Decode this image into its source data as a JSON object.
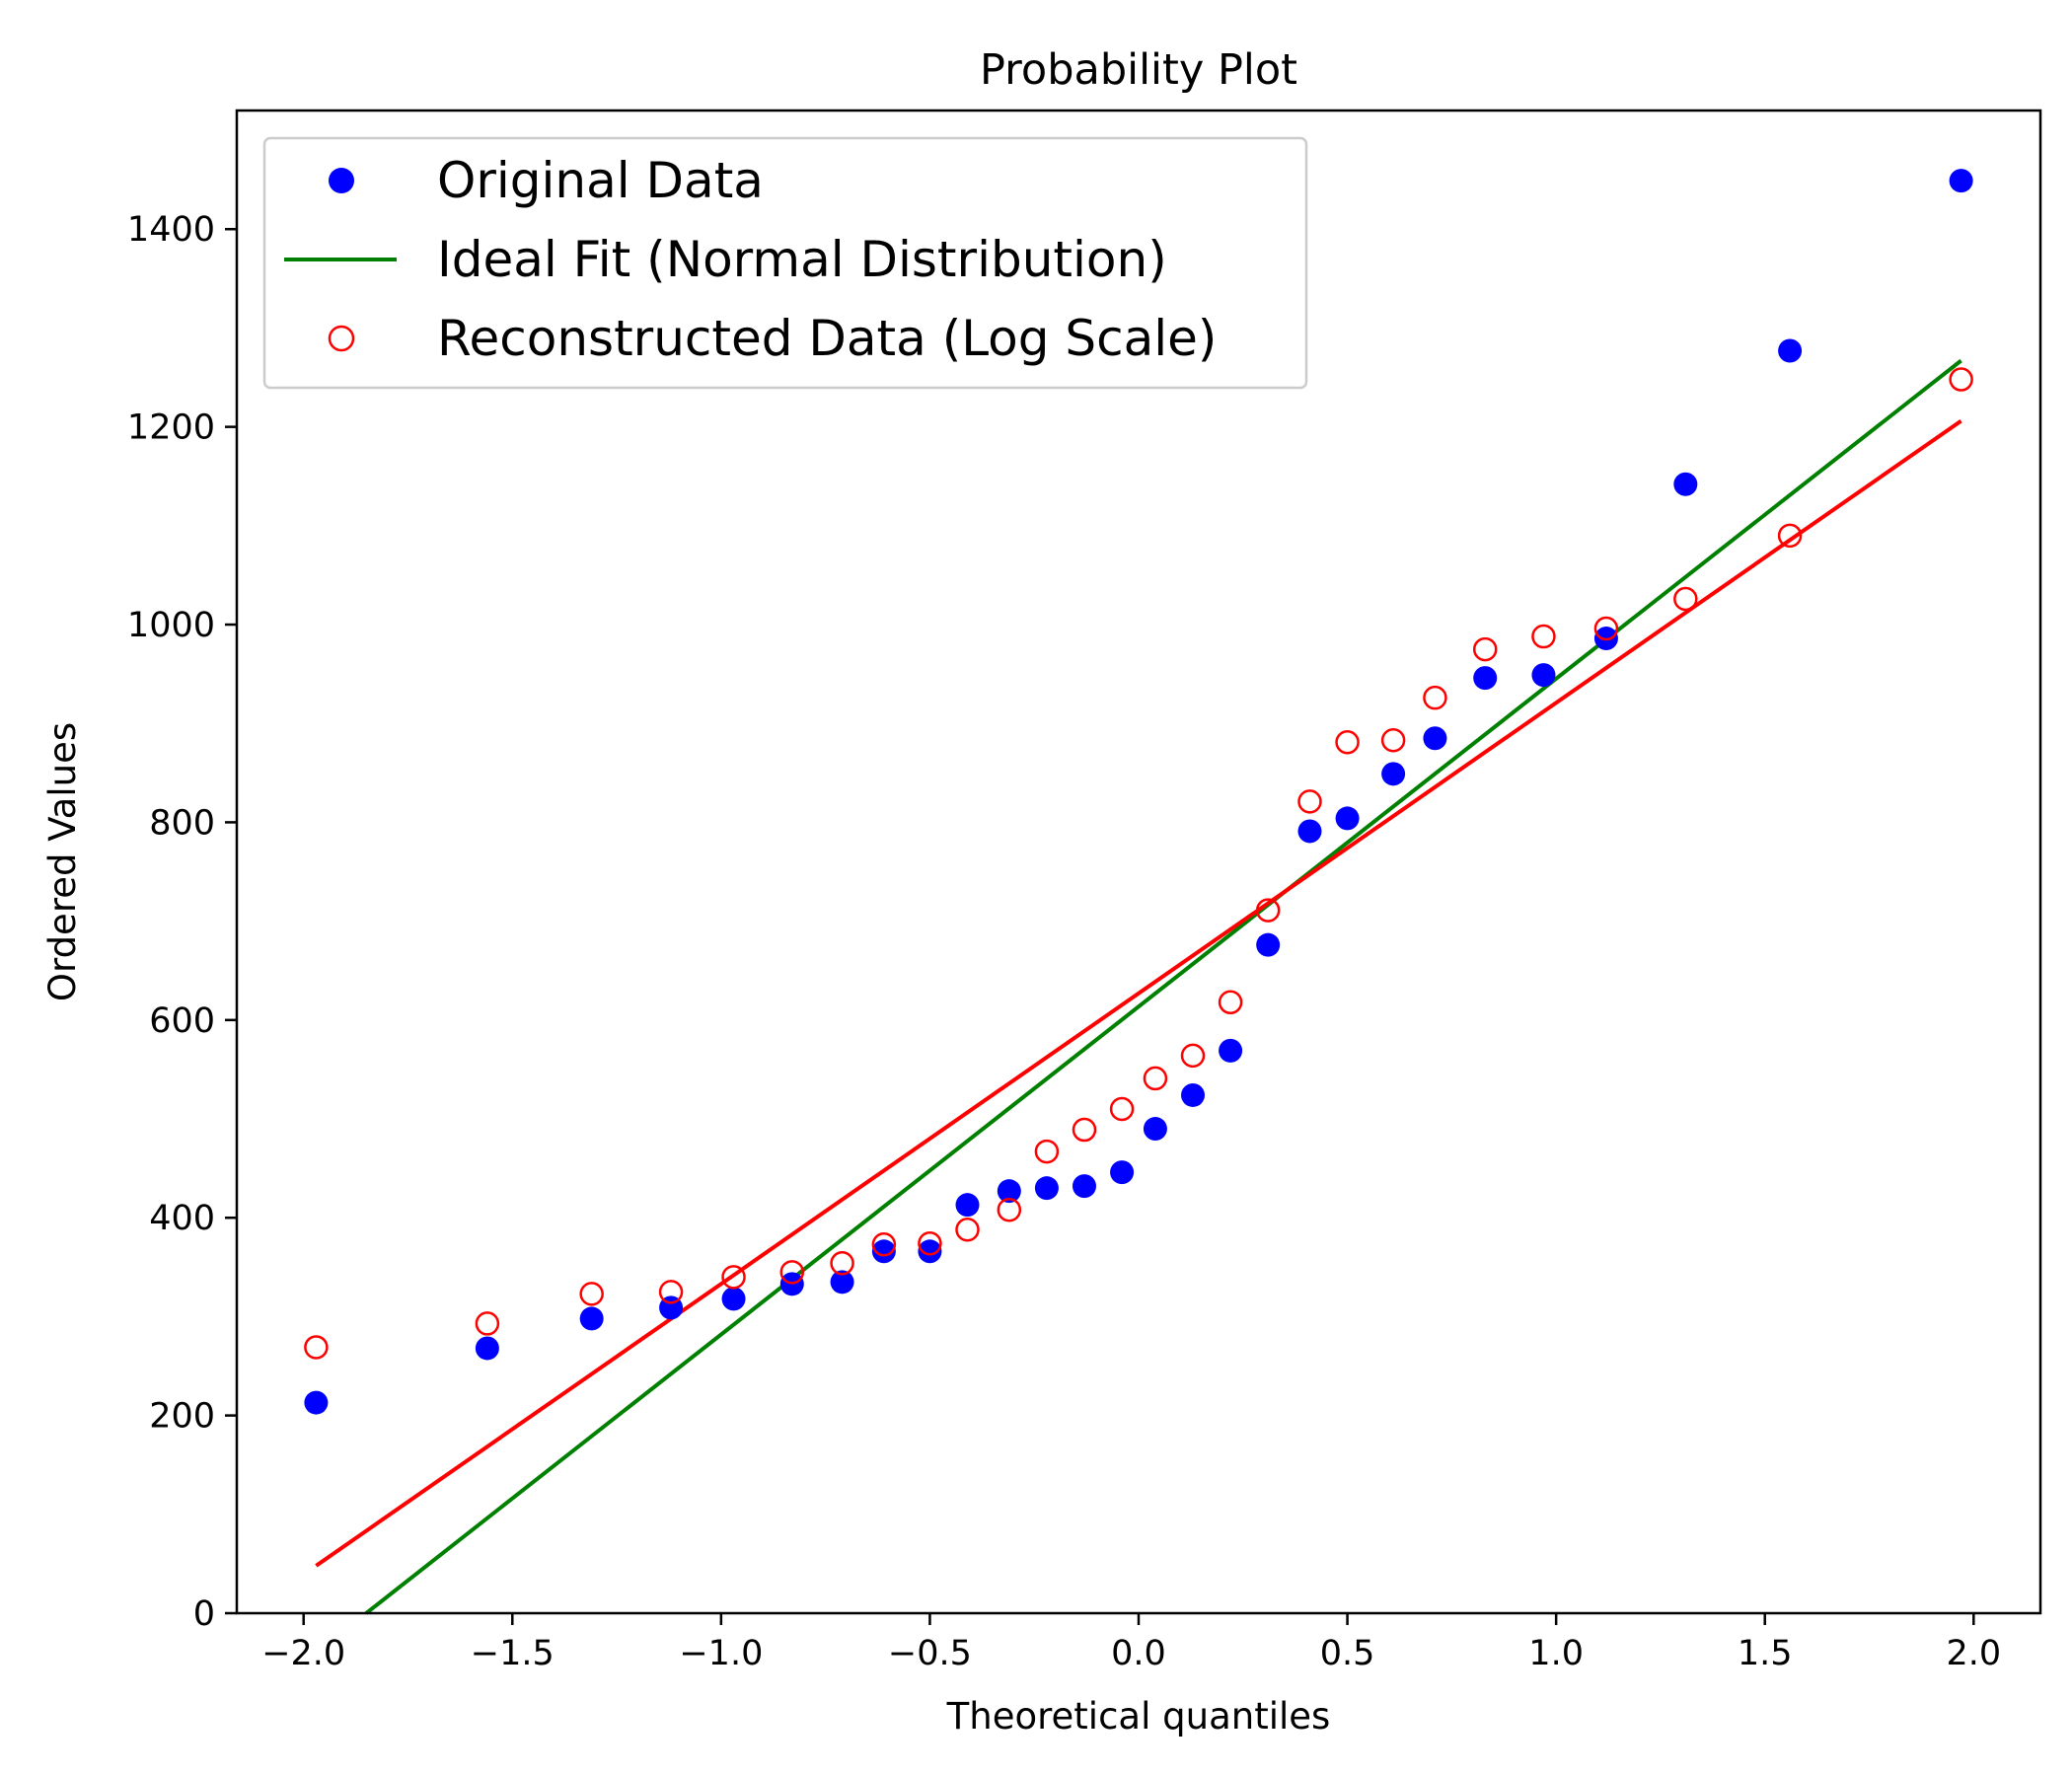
{
  "chart_data": {
    "type": "scatter",
    "title": "Probability Plot",
    "xlabel": "Theoretical quantiles",
    "ylabel": "Ordered Values",
    "xlim": [
      -2.16,
      2.16
    ],
    "ylim": [
      0,
      1520
    ],
    "xticks": [
      -2.0,
      -1.5,
      -1.0,
      -0.5,
      0.0,
      0.5,
      1.0,
      1.5,
      2.0
    ],
    "xtick_labels": [
      "−2.0",
      "−1.5",
      "−1.0",
      "−0.5",
      "0.0",
      "0.5",
      "1.0",
      "1.5",
      "2.0"
    ],
    "yticks": [
      0,
      200,
      400,
      600,
      800,
      1000,
      1200,
      1400
    ],
    "ytick_labels": [
      "0",
      "200",
      "400",
      "600",
      "800",
      "1000",
      "1200",
      "1400"
    ],
    "grid": false,
    "legend_position": "top-left",
    "x": [
      -1.97,
      -1.56,
      -1.31,
      -1.12,
      -0.97,
      -0.83,
      -0.71,
      -0.61,
      -0.5,
      -0.41,
      -0.31,
      -0.22,
      -0.13,
      -0.04,
      0.04,
      0.13,
      0.22,
      0.31,
      0.41,
      0.5,
      0.61,
      0.71,
      0.83,
      0.97,
      1.12,
      1.31,
      1.56,
      1.97
    ],
    "series": [
      {
        "name": "Original Data",
        "kind": "scatter",
        "marker": "filled-circle",
        "color": "#0000ff",
        "values": [
          213,
          268,
          298,
          309,
          318,
          333,
          335,
          366,
          366,
          413,
          427,
          430,
          432,
          446,
          490,
          524,
          569,
          676,
          791,
          804,
          849,
          885,
          946,
          949,
          986,
          1142,
          1277,
          1449
        ]
      },
      {
        "name": "Ideal Fit (Normal Distribution)",
        "kind": "line",
        "color": "#008000",
        "x": [
          -1.85,
          1.97
        ],
        "values": [
          0,
          1267
        ]
      },
      {
        "name": "Reconstructed Data (Log Scale)",
        "kind": "scatter",
        "marker": "hollow-circle",
        "color": "#ff0000",
        "values": [
          269,
          293,
          323,
          325,
          340,
          345,
          354,
          373,
          374,
          388,
          408,
          467,
          489,
          510,
          541,
          564,
          618,
          711,
          821,
          881,
          883,
          926,
          975,
          988,
          996,
          1026,
          1090,
          1248
        ]
      },
      {
        "name": "",
        "kind": "line",
        "color": "#ff0000",
        "x": [
          -1.97,
          1.97
        ],
        "values": [
          48,
          1206
        ]
      }
    ]
  }
}
